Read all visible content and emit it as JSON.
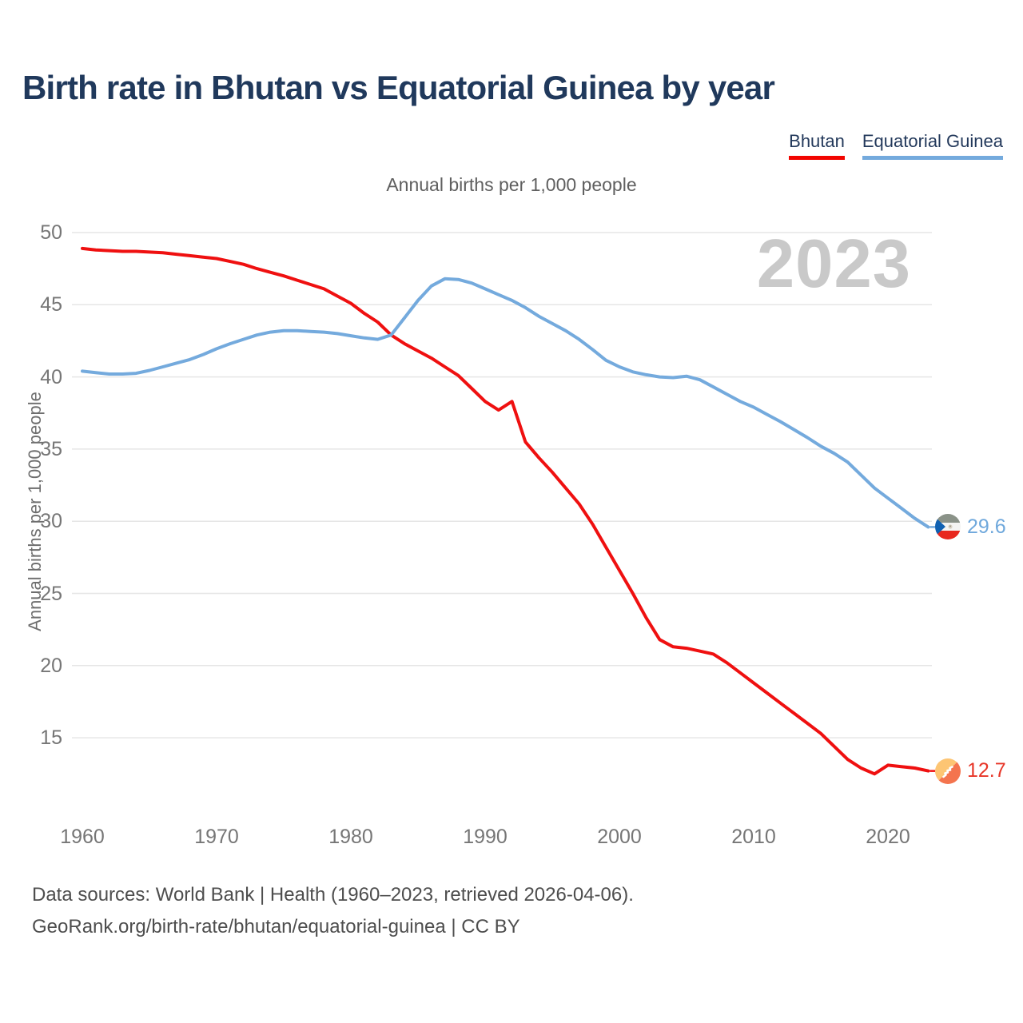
{
  "header": {
    "title": "Birth rate in Bhutan vs Equatorial Guinea by year"
  },
  "legend": {
    "items": [
      {
        "label": "Bhutan",
        "color": "#f20500"
      },
      {
        "label": "Equatorial Guinea",
        "color": "#74aadd"
      }
    ]
  },
  "subtitle": "Annual births per 1,000 people",
  "watermark": "2023",
  "axes": {
    "y_label": "Annual births per 1,000 people",
    "y_ticks": [
      15,
      20,
      25,
      30,
      35,
      40,
      45,
      50
    ],
    "x_ticks": [
      1960,
      1970,
      1980,
      1990,
      2000,
      2010,
      2020
    ]
  },
  "end_labels": {
    "equatorial_guinea": {
      "value": "29.6",
      "flag": "equatorial-guinea-flag"
    },
    "bhutan": {
      "value": "12.7",
      "flag": "bhutan-flag"
    }
  },
  "footer": {
    "line1": "Data sources: World Bank | Health (1960–2023, retrieved 2026-04-06).",
    "line2": "GeoRank.org/birth-rate/bhutan/equatorial-guinea | CC BY"
  },
  "chart_data": {
    "type": "line",
    "title": "Birth rate in Bhutan vs Equatorial Guinea by year",
    "subtitle": "Annual births per 1,000 people",
    "xlabel": "",
    "ylabel": "Annual births per 1,000 people",
    "x_range": [
      1960,
      2023
    ],
    "ylim": [
      12,
      51
    ],
    "yticks": [
      15,
      20,
      25,
      30,
      35,
      40,
      45,
      50
    ],
    "xticks": [
      1960,
      1970,
      1980,
      1990,
      2000,
      2010,
      2020
    ],
    "grid": "horizontal",
    "legend_position": "top-right",
    "x": [
      1960,
      1961,
      1962,
      1963,
      1964,
      1965,
      1966,
      1967,
      1968,
      1969,
      1970,
      1971,
      1972,
      1973,
      1974,
      1975,
      1976,
      1977,
      1978,
      1979,
      1980,
      1981,
      1982,
      1983,
      1984,
      1985,
      1986,
      1987,
      1988,
      1989,
      1990,
      1991,
      1992,
      1993,
      1994,
      1995,
      1996,
      1997,
      1998,
      1999,
      2000,
      2001,
      2002,
      2003,
      2004,
      2005,
      2006,
      2007,
      2008,
      2009,
      2010,
      2011,
      2012,
      2013,
      2014,
      2015,
      2016,
      2017,
      2018,
      2019,
      2020,
      2021,
      2022,
      2023
    ],
    "series": [
      {
        "name": "Bhutan",
        "color": "#ef1010",
        "end_value": 12.7,
        "values": [
          48.9,
          48.8,
          48.75,
          48.7,
          48.7,
          48.65,
          48.6,
          48.5,
          48.4,
          48.3,
          48.2,
          48.0,
          47.8,
          47.5,
          47.25,
          47.0,
          46.7,
          46.4,
          46.1,
          45.6,
          45.1,
          44.4,
          43.8,
          42.9,
          42.3,
          41.8,
          41.3,
          40.7,
          40.1,
          39.2,
          38.3,
          37.7,
          38.3,
          35.5,
          34.4,
          33.4,
          32.3,
          31.2,
          29.8,
          28.2,
          26.6,
          25.0,
          23.3,
          21.8,
          21.3,
          21.2,
          21.0,
          20.8,
          20.2,
          19.5,
          18.8,
          18.1,
          17.4,
          16.7,
          16.0,
          15.3,
          14.4,
          13.5,
          12.9,
          12.5,
          13.1,
          13.0,
          12.9,
          12.7
        ]
      },
      {
        "name": "Equatorial Guinea",
        "color": "#74aadd",
        "end_value": 29.6,
        "values": [
          40.4,
          40.3,
          40.2,
          40.2,
          40.25,
          40.45,
          40.7,
          40.95,
          41.2,
          41.55,
          41.95,
          42.3,
          42.6,
          42.9,
          43.1,
          43.2,
          43.2,
          43.15,
          43.1,
          43.0,
          42.85,
          42.7,
          42.6,
          42.9,
          44.1,
          45.3,
          46.3,
          46.8,
          46.75,
          46.5,
          46.1,
          45.7,
          45.3,
          44.8,
          44.2,
          43.7,
          43.2,
          42.6,
          41.9,
          41.15,
          40.7,
          40.35,
          40.15,
          40.0,
          39.95,
          40.05,
          39.8,
          39.3,
          38.8,
          38.3,
          37.9,
          37.4,
          36.9,
          36.35,
          35.8,
          35.2,
          34.7,
          34.1,
          33.2,
          32.3,
          31.6,
          30.9,
          30.2,
          29.6
        ]
      }
    ]
  }
}
